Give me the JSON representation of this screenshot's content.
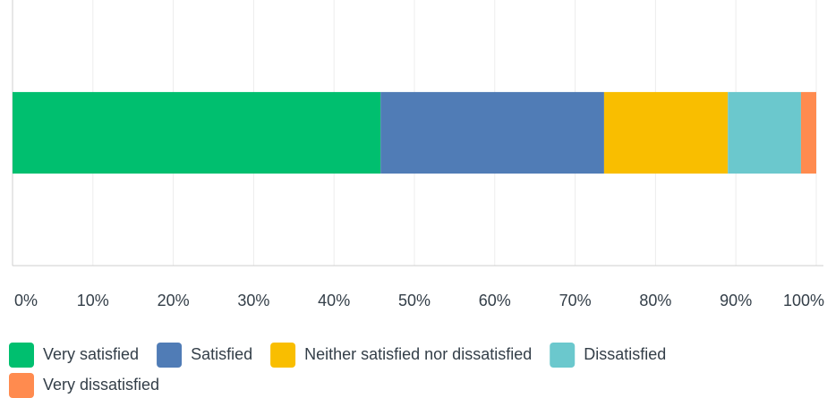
{
  "chart_data": {
    "type": "stacked-bar-horizontal",
    "categories": [
      null
    ],
    "series": [
      {
        "name": "Very satisfied",
        "color": "#00bf6f",
        "values": [
          45.8
        ]
      },
      {
        "name": "Satisfied",
        "color": "#507cb6",
        "values": [
          27.8
        ]
      },
      {
        "name": "Neither satisfied nor dissatisfied",
        "color": "#f9be00",
        "values": [
          15.4
        ]
      },
      {
        "name": "Dissatisfied",
        "color": "#6bc8cd",
        "values": [
          9.1
        ]
      },
      {
        "name": "Very dissatisfied",
        "color": "#ff8b4f",
        "values": [
          1.9
        ]
      }
    ],
    "xlim": [
      0,
      100
    ],
    "xticks": [
      {
        "value": 0,
        "label": "0%"
      },
      {
        "value": 10,
        "label": "10%"
      },
      {
        "value": 20,
        "label": "20%"
      },
      {
        "value": 30,
        "label": "30%"
      },
      {
        "value": 40,
        "label": "40%"
      },
      {
        "value": 50,
        "label": "50%"
      },
      {
        "value": 60,
        "label": "60%"
      },
      {
        "value": 70,
        "label": "70%"
      },
      {
        "value": 80,
        "label": "80%"
      },
      {
        "value": 90,
        "label": "90%"
      },
      {
        "value": 100,
        "label": "100%"
      }
    ],
    "grid": true
  }
}
